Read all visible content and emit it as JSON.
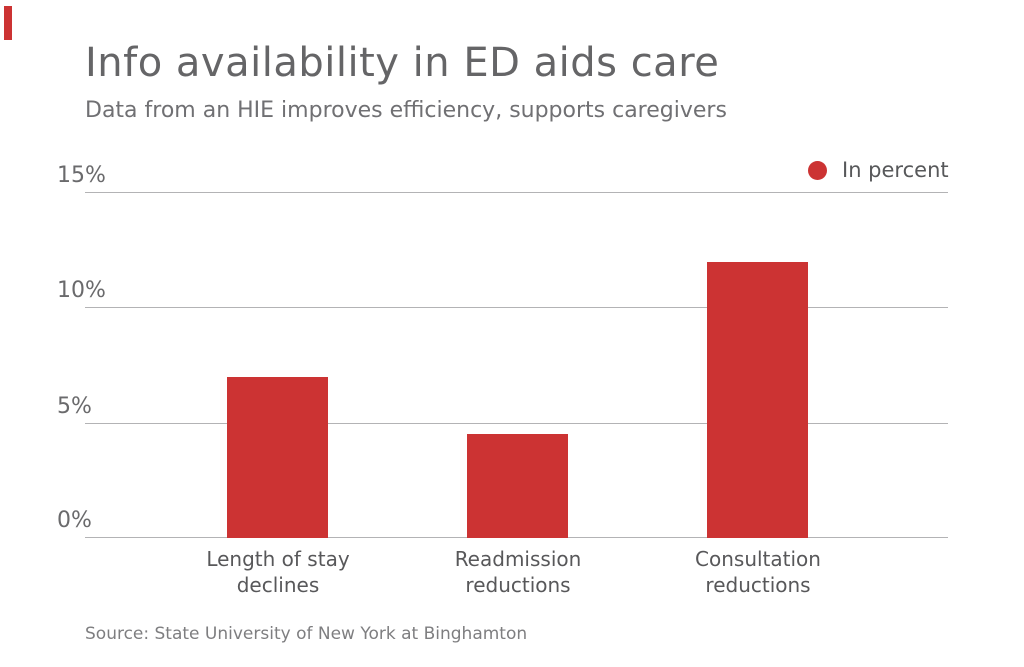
{
  "accent_color": "#cc3333",
  "header": {
    "title": "Info availability in ED aids care",
    "subtitle": "Data from an HIE improves efficiency, supports caregivers"
  },
  "legend": {
    "label": "In percent",
    "dot_color": "#cc3333"
  },
  "chart_data": {
    "type": "bar",
    "title": "Info availability in ED aids care",
    "subtitle": "Data from an HIE improves efficiency, supports caregivers",
    "categories": [
      "Length of stay declines",
      "Readmission reductions",
      "Consultation reductions"
    ],
    "values": [
      7,
      4.5,
      12
    ],
    "unit": "percent",
    "xlabel": "",
    "ylabel": "",
    "ylim": [
      0,
      15
    ],
    "yticks": [
      "0%",
      "5%",
      "10%",
      "15%"
    ],
    "grid": true,
    "legend_entries": [
      "In percent"
    ],
    "legend_position": "top-right",
    "bar_color": "#cc3333"
  },
  "source": "Source: State University of New York at Binghamton"
}
